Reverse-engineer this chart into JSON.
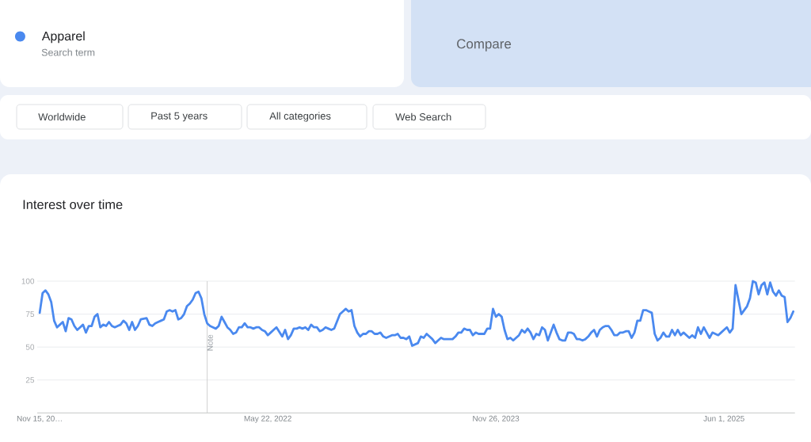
{
  "chart_data": {
    "type": "line",
    "title": "Interest over time",
    "x": [
      "2020-11-15",
      "2020-11-22",
      "2020-11-29",
      "2020-12-06",
      "2020-12-13",
      "2020-12-20",
      "2020-12-27",
      "2021-01-03",
      "2021-01-10",
      "2021-01-17",
      "2021-01-24",
      "2021-01-31",
      "2021-02-07",
      "2021-02-14",
      "2021-02-21",
      "2021-02-28",
      "2021-03-07",
      "2021-03-14",
      "2021-03-21",
      "2021-03-28",
      "2021-04-04",
      "2021-04-11",
      "2021-04-18",
      "2021-04-25",
      "2021-05-02",
      "2021-05-09",
      "2021-05-16",
      "2021-05-23",
      "2021-05-30",
      "2021-06-06",
      "2021-06-13",
      "2021-06-20",
      "2021-06-27",
      "2021-07-04",
      "2021-07-11",
      "2021-07-18",
      "2021-08-01",
      "2021-08-08",
      "2021-08-15",
      "2021-08-22",
      "2021-08-29",
      "2021-09-05",
      "2021-09-12",
      "2021-09-19",
      "2021-09-26",
      "2021-10-03",
      "2021-10-10",
      "2021-10-17",
      "2021-10-24",
      "2021-10-31",
      "2021-11-07",
      "2021-11-14",
      "2021-11-21",
      "2021-11-28",
      "2021-12-05",
      "2021-12-12",
      "2021-12-19",
      "2021-12-26",
      "2022-01-02",
      "2022-01-09",
      "2022-01-16",
      "2022-01-23",
      "2022-01-30",
      "2022-02-06",
      "2022-02-13",
      "2022-02-20",
      "2022-02-27",
      "2022-03-06",
      "2022-03-13",
      "2022-03-20",
      "2022-03-27",
      "2022-04-03",
      "2022-04-10",
      "2022-04-17",
      "2022-04-24",
      "2022-05-01",
      "2022-05-08",
      "2022-05-15",
      "2022-05-22",
      "2022-05-29",
      "2022-06-05",
      "2022-06-12",
      "2022-06-26",
      "2022-07-03",
      "2022-07-10",
      "2022-07-17",
      "2022-07-24",
      "2022-07-31",
      "2022-08-07",
      "2022-08-14",
      "2022-08-21",
      "2022-08-28",
      "2022-09-04",
      "2022-09-11",
      "2022-09-18",
      "2022-09-25",
      "2022-10-02",
      "2022-10-09",
      "2022-10-16",
      "2022-10-23",
      "2022-10-30",
      "2022-11-13",
      "2022-11-20",
      "2022-11-27",
      "2022-12-04",
      "2022-12-11",
      "2022-12-18",
      "2022-12-25",
      "2023-01-01",
      "2023-01-08",
      "2023-01-15",
      "2023-01-22",
      "2023-01-29",
      "2023-02-05",
      "2023-02-12",
      "2023-02-19",
      "2023-02-26",
      "2023-03-05",
      "2023-03-19",
      "2023-03-26",
      "2023-04-02",
      "2023-04-09",
      "2023-04-16",
      "2023-04-23",
      "2023-04-30",
      "2023-05-07",
      "2023-05-21",
      "2023-05-28",
      "2023-06-04",
      "2023-06-11",
      "2023-06-18",
      "2023-06-25",
      "2023-07-02",
      "2023-07-09",
      "2023-07-16",
      "2023-07-23",
      "2023-07-30",
      "2023-08-06",
      "2023-08-13",
      "2023-08-20",
      "2023-08-27",
      "2023-09-03",
      "2023-09-10",
      "2023-09-17",
      "2023-09-24",
      "2023-10-01",
      "2023-10-08",
      "2023-10-15",
      "2023-10-22",
      "2023-10-29",
      "2023-11-05",
      "2023-11-12",
      "2023-11-19",
      "2023-11-26",
      "2023-12-03",
      "2023-12-10",
      "2023-12-17",
      "2023-12-24",
      "2023-12-31",
      "2024-01-07",
      "2024-01-14",
      "2024-01-21",
      "2024-01-28",
      "2024-02-04",
      "2024-02-11",
      "2024-02-18",
      "2024-02-25",
      "2024-03-03",
      "2024-03-10",
      "2024-03-17",
      "2024-03-24",
      "2024-03-31",
      "2024-04-14",
      "2024-04-21",
      "2024-04-28",
      "2024-05-05",
      "2024-05-12",
      "2024-05-19",
      "2024-05-26",
      "2024-06-02",
      "2024-06-09",
      "2024-06-16",
      "2024-06-23",
      "2024-06-30",
      "2024-07-07",
      "2024-07-14",
      "2024-07-21",
      "2024-07-28",
      "2024-08-04",
      "2024-08-11",
      "2024-08-18",
      "2024-08-25",
      "2024-09-01",
      "2024-09-08",
      "2024-09-15",
      "2024-09-22",
      "2024-09-29",
      "2024-10-06",
      "2024-10-13",
      "2024-10-20",
      "2024-10-27",
      "2024-11-03",
      "2024-11-10",
      "2024-11-17",
      "2024-11-24",
      "2024-12-01",
      "2024-12-08",
      "2024-12-15",
      "2024-12-22",
      "2024-12-29",
      "2025-01-05",
      "2025-01-12",
      "2025-01-19",
      "2025-01-26",
      "2025-02-02",
      "2025-02-09",
      "2025-02-16",
      "2025-02-23",
      "2025-03-09",
      "2025-03-16",
      "2025-03-23",
      "2025-03-30",
      "2025-04-06",
      "2025-04-13",
      "2025-04-20",
      "2025-04-27",
      "2025-05-04",
      "2025-05-11",
      "2025-05-18",
      "2025-05-25",
      "2025-06-01",
      "2025-06-08",
      "2025-06-15",
      "2025-06-22",
      "2025-06-29",
      "2025-07-06",
      "2025-07-13",
      "2025-07-20",
      "2025-07-27",
      "2025-08-03",
      "2025-08-10",
      "2025-08-17",
      "2025-08-24",
      "2025-08-31",
      "2025-09-07",
      "2025-09-14",
      "2025-09-21",
      "2025-09-28",
      "2025-10-05",
      "2025-10-12",
      "2025-10-19",
      "2025-10-26",
      "2025-11-02",
      "2025-11-09",
      "2025-11-16"
    ],
    "series": [
      {
        "name": "Apparel",
        "color": "#4a89ef",
        "values": [
          76,
          91,
          93,
          90,
          84,
          70,
          65,
          67,
          69,
          62,
          72,
          71,
          66,
          63,
          65,
          67,
          61,
          66,
          66,
          73,
          75,
          65,
          67,
          66,
          69,
          66,
          65,
          66,
          67,
          70,
          68,
          63,
          69,
          63,
          66,
          71,
          72,
          67,
          66,
          68,
          69,
          70,
          71,
          77,
          78,
          77,
          78,
          71,
          72,
          75,
          81,
          83,
          86,
          91,
          92,
          87,
          75,
          68,
          66,
          65,
          64,
          66,
          73,
          69,
          65,
          63,
          60,
          61,
          65,
          65,
          68,
          65,
          65,
          64,
          65,
          65,
          63,
          62,
          59,
          61,
          63,
          65,
          58,
          63,
          56,
          59,
          64,
          64,
          65,
          64,
          65,
          63,
          67,
          65,
          65,
          62,
          63,
          65,
          64,
          63,
          64,
          75,
          77,
          79,
          77,
          78,
          66,
          61,
          58,
          60,
          60,
          62,
          62,
          60,
          60,
          61,
          58,
          57,
          59,
          59,
          60,
          57,
          57,
          56,
          58,
          51,
          53,
          58,
          57,
          60,
          58,
          56,
          53,
          55,
          57,
          56,
          56,
          56,
          56,
          58,
          61,
          61,
          64,
          63,
          63,
          59,
          61,
          60,
          60,
          60,
          64,
          64,
          79,
          73,
          75,
          73,
          63,
          56,
          57,
          55,
          57,
          59,
          63,
          61,
          64,
          61,
          56,
          60,
          59,
          65,
          63,
          55,
          67,
          61,
          56,
          55,
          55,
          61,
          61,
          60,
          56,
          56,
          55,
          56,
          58,
          61,
          63,
          58,
          63,
          65,
          66,
          66,
          63,
          59,
          59,
          61,
          61,
          62,
          62,
          57,
          61,
          70,
          70,
          78,
          78,
          77,
          76,
          60,
          55,
          57,
          61,
          58,
          58,
          63,
          59,
          63,
          59,
          61,
          57,
          59,
          57,
          65,
          60,
          65,
          61,
          57,
          61,
          60,
          59,
          61,
          63,
          65,
          61,
          64,
          97,
          86,
          75,
          78,
          81,
          87,
          100,
          99,
          90,
          97,
          99,
          90,
          99,
          92,
          89,
          93,
          89,
          88,
          69,
          72,
          77
        ]
      }
    ],
    "xlim": [
      "2020-11-09",
      "2025-11-20"
    ],
    "xticks": [
      {
        "value": "2020-11-15",
        "label": "Nov 15, 20…"
      },
      {
        "value": "2022-05-22",
        "label": "May 22, 2022"
      },
      {
        "value": "2023-11-26",
        "label": "Nov 26, 2023"
      },
      {
        "value": "2025-06-01",
        "label": "Jun 1, 2025"
      }
    ],
    "ylim": [
      0,
      100
    ],
    "yticks": [
      25,
      50,
      75,
      100
    ],
    "grid": "y",
    "legend": "top left",
    "ref_lines": [
      {
        "axis": "x",
        "value": "2021-12-26",
        "label": "Note"
      }
    ],
    "annotations": [
      "Search term",
      "Compare",
      "Worldwide",
      "Past 5 years",
      "All categories",
      "Web Search"
    ]
  }
}
